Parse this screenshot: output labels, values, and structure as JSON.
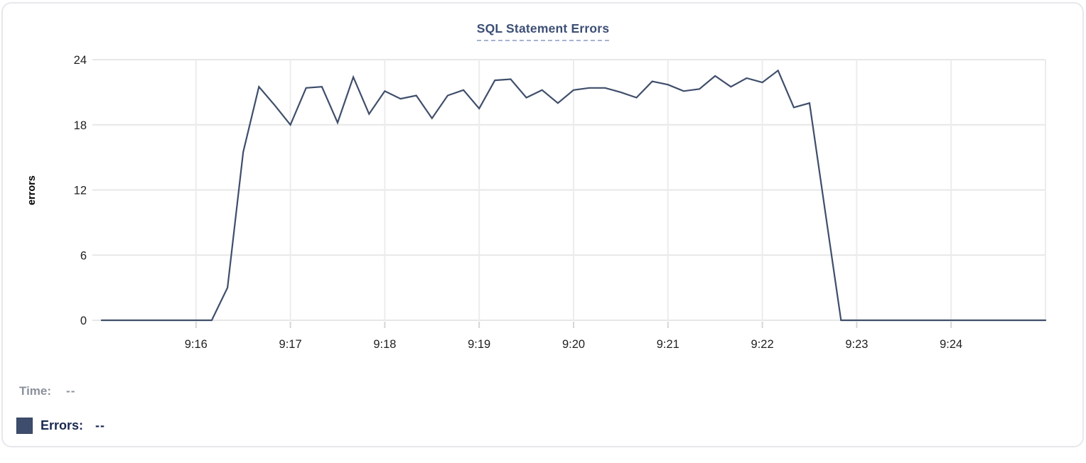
{
  "title": "SQL Statement Errors",
  "legend": {
    "time_label": "Time:",
    "time_value": "--",
    "errors_label": "Errors:",
    "errors_value": "--",
    "swatch_color": "#3e4d6c"
  },
  "colors": {
    "line": "#3f4e6b",
    "title": "#3c4f75",
    "title_underline": "#a6b3d2",
    "grid_horizontal": "#e7e7e7",
    "grid_vertical": "#ececec",
    "tick_mark": "#d6d6d6",
    "axis_text": "#1f1f1f",
    "axis_title_text": "#000000",
    "time_text": "#8b909a",
    "errors_text": "#1b2951",
    "card_border": "#e7e8ec"
  },
  "chart_data": {
    "type": "line",
    "title": "SQL Statement Errors",
    "xlabel": "",
    "ylabel": "errors",
    "ylim": [
      0,
      24
    ],
    "yticks": [
      0,
      6,
      12,
      18,
      24
    ],
    "xticks": [
      "9:16",
      "9:17",
      "9:18",
      "9:19",
      "9:20",
      "9:21",
      "9:22",
      "9:23",
      "9:24"
    ],
    "x_start": "9:15:00",
    "x_end": "9:25:00",
    "interval_seconds": 10,
    "grid": true,
    "legend_position": "bottom-left",
    "series": [
      {
        "name": "Errors",
        "x": [
          "9:15:00",
          "9:15:10",
          "9:15:20",
          "9:15:30",
          "9:15:40",
          "9:15:50",
          "9:16:00",
          "9:16:10",
          "9:16:20",
          "9:16:30",
          "9:16:40",
          "9:16:50",
          "9:17:00",
          "9:17:10",
          "9:17:20",
          "9:17:30",
          "9:17:40",
          "9:17:50",
          "9:18:00",
          "9:18:10",
          "9:18:20",
          "9:18:30",
          "9:18:40",
          "9:18:50",
          "9:19:00",
          "9:19:10",
          "9:19:20",
          "9:19:30",
          "9:19:40",
          "9:19:50",
          "9:20:00",
          "9:20:10",
          "9:20:20",
          "9:20:30",
          "9:20:40",
          "9:20:50",
          "9:21:00",
          "9:21:10",
          "9:21:20",
          "9:21:30",
          "9:21:40",
          "9:21:50",
          "9:22:00",
          "9:22:10",
          "9:22:20",
          "9:22:30",
          "9:22:40",
          "9:22:50",
          "9:23:00",
          "9:23:10",
          "9:23:20",
          "9:23:30",
          "9:23:40",
          "9:23:50",
          "9:24:00",
          "9:24:10",
          "9:24:20",
          "9:24:30",
          "9:24:40",
          "9:24:50",
          "9:25:00"
        ],
        "values": [
          0,
          0,
          0,
          0,
          0,
          0,
          0,
          0,
          3,
          15.5,
          21.5,
          19.8,
          18,
          21.4,
          21.5,
          18.2,
          22.4,
          19,
          21.1,
          20.4,
          20.7,
          18.6,
          20.7,
          21.2,
          19.5,
          22.1,
          22.2,
          20.5,
          21.2,
          20,
          21.2,
          21.4,
          21.4,
          21,
          20.5,
          22,
          21.7,
          21.1,
          21.3,
          22.5,
          21.5,
          22.3,
          21.9,
          23,
          19.6,
          20,
          10,
          0,
          0,
          0,
          0,
          0,
          0,
          0,
          0,
          0,
          0,
          0,
          0,
          0,
          0
        ]
      }
    ]
  }
}
